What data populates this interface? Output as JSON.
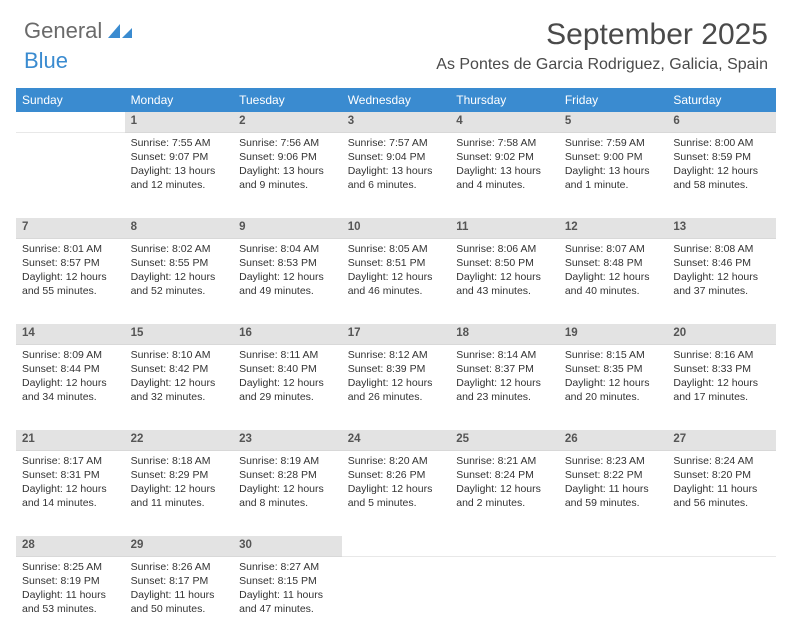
{
  "brand": {
    "part1": "General",
    "part2": "Blue",
    "logo_fill": "#3a8bd0"
  },
  "title": "September 2025",
  "location": "As Pontes de Garcia Rodriguez, Galicia, Spain",
  "colors": {
    "header_bg": "#3a8bd0",
    "header_text": "#ffffff",
    "daynum_bg": "#e3e3e3",
    "text": "#333333",
    "page_bg": "#ffffff"
  },
  "weekdays": [
    "Sunday",
    "Monday",
    "Tuesday",
    "Wednesday",
    "Thursday",
    "Friday",
    "Saturday"
  ],
  "weeks": [
    {
      "nums": [
        "",
        "1",
        "2",
        "3",
        "4",
        "5",
        "6"
      ],
      "cells": [
        null,
        {
          "sunrise": "Sunrise: 7:55 AM",
          "sunset": "Sunset: 9:07 PM",
          "daylight": "Daylight: 13 hours and 12 minutes."
        },
        {
          "sunrise": "Sunrise: 7:56 AM",
          "sunset": "Sunset: 9:06 PM",
          "daylight": "Daylight: 13 hours and 9 minutes."
        },
        {
          "sunrise": "Sunrise: 7:57 AM",
          "sunset": "Sunset: 9:04 PM",
          "daylight": "Daylight: 13 hours and 6 minutes."
        },
        {
          "sunrise": "Sunrise: 7:58 AM",
          "sunset": "Sunset: 9:02 PM",
          "daylight": "Daylight: 13 hours and 4 minutes."
        },
        {
          "sunrise": "Sunrise: 7:59 AM",
          "sunset": "Sunset: 9:00 PM",
          "daylight": "Daylight: 13 hours and 1 minute."
        },
        {
          "sunrise": "Sunrise: 8:00 AM",
          "sunset": "Sunset: 8:59 PM",
          "daylight": "Daylight: 12 hours and 58 minutes."
        }
      ]
    },
    {
      "nums": [
        "7",
        "8",
        "9",
        "10",
        "11",
        "12",
        "13"
      ],
      "cells": [
        {
          "sunrise": "Sunrise: 8:01 AM",
          "sunset": "Sunset: 8:57 PM",
          "daylight": "Daylight: 12 hours and 55 minutes."
        },
        {
          "sunrise": "Sunrise: 8:02 AM",
          "sunset": "Sunset: 8:55 PM",
          "daylight": "Daylight: 12 hours and 52 minutes."
        },
        {
          "sunrise": "Sunrise: 8:04 AM",
          "sunset": "Sunset: 8:53 PM",
          "daylight": "Daylight: 12 hours and 49 minutes."
        },
        {
          "sunrise": "Sunrise: 8:05 AM",
          "sunset": "Sunset: 8:51 PM",
          "daylight": "Daylight: 12 hours and 46 minutes."
        },
        {
          "sunrise": "Sunrise: 8:06 AM",
          "sunset": "Sunset: 8:50 PM",
          "daylight": "Daylight: 12 hours and 43 minutes."
        },
        {
          "sunrise": "Sunrise: 8:07 AM",
          "sunset": "Sunset: 8:48 PM",
          "daylight": "Daylight: 12 hours and 40 minutes."
        },
        {
          "sunrise": "Sunrise: 8:08 AM",
          "sunset": "Sunset: 8:46 PM",
          "daylight": "Daylight: 12 hours and 37 minutes."
        }
      ]
    },
    {
      "nums": [
        "14",
        "15",
        "16",
        "17",
        "18",
        "19",
        "20"
      ],
      "cells": [
        {
          "sunrise": "Sunrise: 8:09 AM",
          "sunset": "Sunset: 8:44 PM",
          "daylight": "Daylight: 12 hours and 34 minutes."
        },
        {
          "sunrise": "Sunrise: 8:10 AM",
          "sunset": "Sunset: 8:42 PM",
          "daylight": "Daylight: 12 hours and 32 minutes."
        },
        {
          "sunrise": "Sunrise: 8:11 AM",
          "sunset": "Sunset: 8:40 PM",
          "daylight": "Daylight: 12 hours and 29 minutes."
        },
        {
          "sunrise": "Sunrise: 8:12 AM",
          "sunset": "Sunset: 8:39 PM",
          "daylight": "Daylight: 12 hours and 26 minutes."
        },
        {
          "sunrise": "Sunrise: 8:14 AM",
          "sunset": "Sunset: 8:37 PM",
          "daylight": "Daylight: 12 hours and 23 minutes."
        },
        {
          "sunrise": "Sunrise: 8:15 AM",
          "sunset": "Sunset: 8:35 PM",
          "daylight": "Daylight: 12 hours and 20 minutes."
        },
        {
          "sunrise": "Sunrise: 8:16 AM",
          "sunset": "Sunset: 8:33 PM",
          "daylight": "Daylight: 12 hours and 17 minutes."
        }
      ]
    },
    {
      "nums": [
        "21",
        "22",
        "23",
        "24",
        "25",
        "26",
        "27"
      ],
      "cells": [
        {
          "sunrise": "Sunrise: 8:17 AM",
          "sunset": "Sunset: 8:31 PM",
          "daylight": "Daylight: 12 hours and 14 minutes."
        },
        {
          "sunrise": "Sunrise: 8:18 AM",
          "sunset": "Sunset: 8:29 PM",
          "daylight": "Daylight: 12 hours and 11 minutes."
        },
        {
          "sunrise": "Sunrise: 8:19 AM",
          "sunset": "Sunset: 8:28 PM",
          "daylight": "Daylight: 12 hours and 8 minutes."
        },
        {
          "sunrise": "Sunrise: 8:20 AM",
          "sunset": "Sunset: 8:26 PM",
          "daylight": "Daylight: 12 hours and 5 minutes."
        },
        {
          "sunrise": "Sunrise: 8:21 AM",
          "sunset": "Sunset: 8:24 PM",
          "daylight": "Daylight: 12 hours and 2 minutes."
        },
        {
          "sunrise": "Sunrise: 8:23 AM",
          "sunset": "Sunset: 8:22 PM",
          "daylight": "Daylight: 11 hours and 59 minutes."
        },
        {
          "sunrise": "Sunrise: 8:24 AM",
          "sunset": "Sunset: 8:20 PM",
          "daylight": "Daylight: 11 hours and 56 minutes."
        }
      ]
    },
    {
      "nums": [
        "28",
        "29",
        "30",
        "",
        "",
        "",
        ""
      ],
      "cells": [
        {
          "sunrise": "Sunrise: 8:25 AM",
          "sunset": "Sunset: 8:19 PM",
          "daylight": "Daylight: 11 hours and 53 minutes."
        },
        {
          "sunrise": "Sunrise: 8:26 AM",
          "sunset": "Sunset: 8:17 PM",
          "daylight": "Daylight: 11 hours and 50 minutes."
        },
        {
          "sunrise": "Sunrise: 8:27 AM",
          "sunset": "Sunset: 8:15 PM",
          "daylight": "Daylight: 11 hours and 47 minutes."
        },
        null,
        null,
        null,
        null
      ]
    }
  ]
}
